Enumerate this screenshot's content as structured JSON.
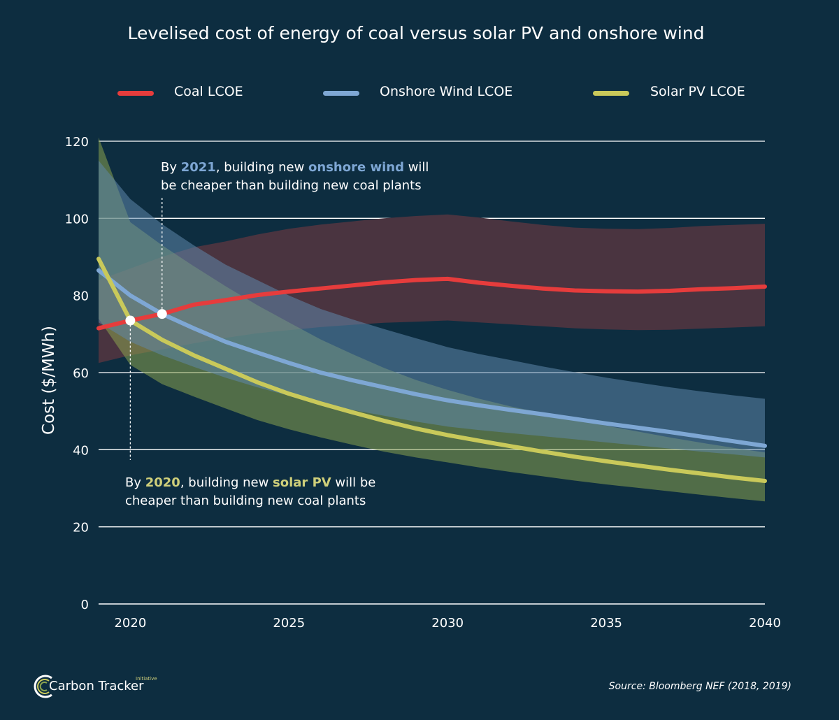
{
  "title": "Levelised cost of energy of coal versus solar PV and onshore wind",
  "colors": {
    "background": "#0d2d40",
    "coal": "#e63c3c",
    "coal_band": "#4a3440",
    "wind": "#7ea7d4",
    "wind_band": "#5f86aa",
    "solar": "#c9c95a",
    "solar_band": "#8aa24e"
  },
  "legend": [
    {
      "label": "Coal LCOE",
      "color": "#e63c3c"
    },
    {
      "label": "Onshore Wind LCOE",
      "color": "#7ea7d4"
    },
    {
      "label": "Solar PV LCOE",
      "color": "#c9c95a"
    }
  ],
  "annotations": {
    "wind": {
      "pre": "By ",
      "year": "2021",
      "mid": ", building new ",
      "tech": "onshore wind",
      "post": " will",
      "line2": "be cheaper than building new coal plants"
    },
    "solar": {
      "pre": "By ",
      "year": "2020",
      "mid": ", building new ",
      "tech": "solar PV",
      "post": " will be",
      "line2": "cheaper than building new coal plants"
    }
  },
  "source": "Source: Bloomberg NEF (2018, 2019)",
  "logo": {
    "text": "Carbon Tracker",
    "sub": "Initiative"
  },
  "chart_data": {
    "type": "line",
    "title": "Levelised cost of energy of coal versus solar PV and onshore wind",
    "xlabel": "",
    "ylabel": "Cost ($/MWh)",
    "xlim": [
      2019,
      2040
    ],
    "ylim": [
      0,
      120
    ],
    "xticks": [
      2020,
      2025,
      2030,
      2035,
      2040
    ],
    "yticks": [
      0,
      20,
      40,
      60,
      80,
      100,
      120
    ],
    "grid": true,
    "legend_position": "top",
    "series": [
      {
        "name": "Coal LCOE",
        "x": [
          2019,
          2020,
          2021,
          2022,
          2023,
          2024,
          2025,
          2026,
          2027,
          2028,
          2029,
          2030,
          2031,
          2032,
          2033,
          2034,
          2035,
          2036,
          2037,
          2038,
          2039,
          2040
        ],
        "values": [
          71.5,
          73.5,
          75.2,
          77.6,
          78.8,
          80.1,
          81.0,
          81.8,
          82.6,
          83.4,
          84.0,
          84.3,
          83.3,
          82.5,
          81.8,
          81.3,
          81.1,
          81.0,
          81.2,
          81.6,
          81.9,
          82.3
        ],
        "low": [
          62.5,
          64.5,
          66.0,
          67.6,
          69.0,
          70.2,
          71.0,
          71.8,
          72.4,
          72.9,
          73.2,
          73.5,
          73.0,
          72.5,
          72.0,
          71.5,
          71.2,
          71.0,
          71.1,
          71.4,
          71.7,
          72.0
        ],
        "high": [
          84.0,
          87.0,
          90.0,
          92.5,
          94.0,
          95.8,
          97.3,
          98.4,
          99.2,
          100.0,
          100.6,
          101.0,
          100.2,
          99.2,
          98.3,
          97.6,
          97.3,
          97.2,
          97.5,
          98.0,
          98.3,
          98.6
        ]
      },
      {
        "name": "Onshore Wind LCOE",
        "x": [
          2019,
          2020,
          2021,
          2022,
          2023,
          2024,
          2025,
          2026,
          2027,
          2028,
          2029,
          2030,
          2031,
          2032,
          2033,
          2034,
          2035,
          2036,
          2037,
          2038,
          2039,
          2040
        ],
        "values": [
          86.5,
          80.0,
          75.2,
          71.5,
          68.0,
          65.2,
          62.5,
          60.0,
          58.0,
          56.2,
          54.4,
          52.8,
          51.5,
          50.3,
          49.2,
          48.0,
          46.8,
          45.7,
          44.6,
          43.4,
          42.2,
          41.0
        ],
        "low": [
          73.0,
          68.0,
          64.5,
          61.5,
          58.7,
          56.2,
          54.0,
          52.0,
          50.3,
          48.8,
          47.3,
          46.0,
          45.1,
          44.3,
          43.5,
          42.7,
          41.9,
          41.1,
          40.3,
          39.5,
          38.8,
          38.0
        ],
        "high": [
          115.0,
          105.0,
          98.5,
          93.0,
          88.0,
          84.0,
          80.0,
          76.5,
          73.8,
          71.3,
          68.9,
          66.6,
          64.8,
          63.2,
          61.6,
          60.1,
          58.7,
          57.4,
          56.2,
          55.1,
          54.1,
          53.2
        ]
      },
      {
        "name": "Solar PV LCOE",
        "x": [
          2019,
          2020,
          2021,
          2022,
          2023,
          2024,
          2025,
          2026,
          2027,
          2028,
          2029,
          2030,
          2031,
          2032,
          2033,
          2034,
          2035,
          2036,
          2037,
          2038,
          2039,
          2040
        ],
        "values": [
          89.5,
          73.5,
          68.5,
          64.5,
          61.0,
          57.5,
          54.5,
          52.0,
          49.7,
          47.5,
          45.5,
          43.8,
          42.3,
          40.9,
          39.5,
          38.2,
          37.0,
          35.9,
          34.8,
          33.8,
          32.8,
          31.9
        ],
        "low": [
          74.0,
          62.0,
          57.0,
          53.8,
          50.7,
          47.7,
          45.3,
          43.2,
          41.3,
          39.5,
          38.0,
          36.7,
          35.4,
          34.2,
          33.1,
          32.0,
          31.0,
          30.1,
          29.2,
          28.3,
          27.4,
          26.6
        ],
        "high": [
          121.0,
          99.0,
          93.0,
          87.6,
          82.4,
          77.5,
          73.0,
          68.6,
          64.8,
          61.2,
          58.1,
          55.5,
          53.2,
          51.2,
          49.5,
          47.8,
          46.2,
          44.7,
          43.2,
          41.8,
          40.5,
          39.3
        ]
      }
    ],
    "markers": [
      {
        "x": 2020,
        "y": 73.5
      },
      {
        "x": 2021,
        "y": 75.2
      }
    ]
  }
}
